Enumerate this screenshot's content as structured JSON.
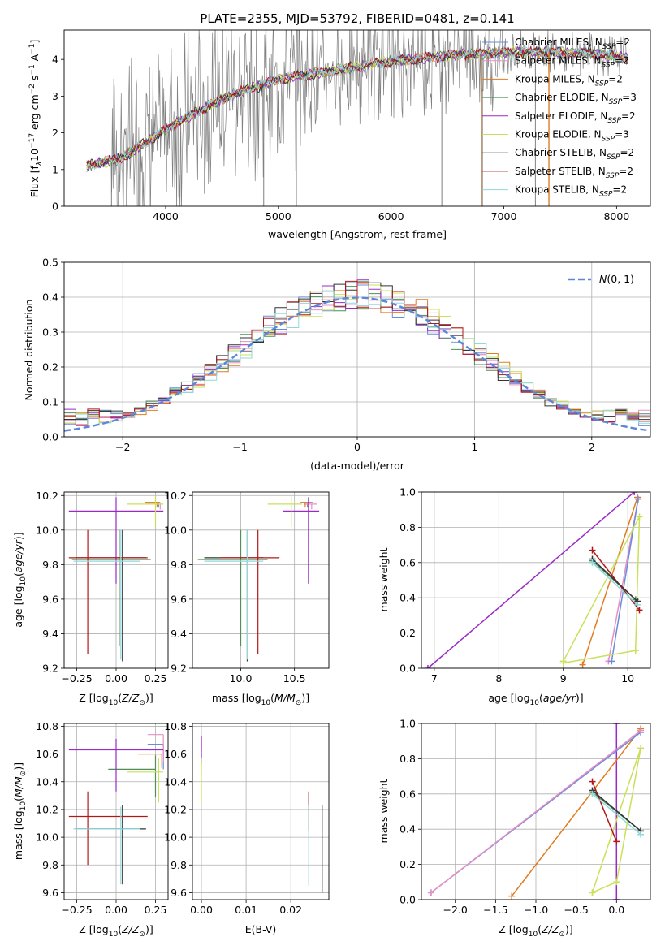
{
  "figure_title": "PLATE=2355, MJD=53792, FIBERID=0481, z=0.141",
  "colors": {
    "Chabrier MILES": "#6a8cdc",
    "Salpeter MILES": "#e68fc4",
    "Kroupa MILES": "#e07b22",
    "Chabrier ELODIE": "#4f8f5a",
    "Salpeter ELODIE": "#9a2bc4",
    "Kroupa ELODIE": "#c9e05a",
    "Chabrier STELIB": "#333333",
    "Salpeter STELIB": "#b01818",
    "Kroupa STELIB": "#8fd8dc",
    "data": "#808080",
    "normal": "#5b87d6"
  },
  "chart_data": [
    {
      "id": "spectrum",
      "type": "line",
      "xlabel": "wavelength [Angstrom, rest frame]",
      "ylabel": "Flux [f_λ 10^-17 erg cm^-2 s^-1 A^-1]",
      "xlim": [
        3100,
        8300
      ],
      "ylim": [
        0,
        4.8
      ],
      "xticks": [
        4000,
        5000,
        6000,
        7000,
        8000
      ],
      "yticks": [
        0,
        1,
        2,
        3,
        4
      ],
      "legend_position": "upper-right",
      "legend": [
        {
          "name": "Chabrier MILES",
          "label": "Chabrier MILES, N",
          "sub": "SSP",
          "suffix": "=2"
        },
        {
          "name": "Salpeter MILES",
          "label": "Salpeter MILES, N",
          "sub": "SSP",
          "suffix": "=2"
        },
        {
          "name": "Kroupa MILES",
          "label": "Kroupa MILES, N",
          "sub": "SSP",
          "suffix": "=2"
        },
        {
          "name": "Chabrier ELODIE",
          "label": "Chabrier ELODIE, N",
          "sub": "SSP",
          "suffix": "=3"
        },
        {
          "name": "Salpeter ELODIE",
          "label": "Salpeter ELODIE, N",
          "sub": "SSP",
          "suffix": "=2"
        },
        {
          "name": "Kroupa ELODIE",
          "label": "Kroupa ELODIE, N",
          "sub": "SSP",
          "suffix": "=3"
        },
        {
          "name": "Chabrier STELIB",
          "label": "Chabrier STELIB, N",
          "sub": "SSP",
          "suffix": "=2"
        },
        {
          "name": "Salpeter STELIB",
          "label": "Salpeter STELIB, N",
          "sub": "SSP",
          "suffix": "=2"
        },
        {
          "name": "Kroupa STELIB",
          "label": "Kroupa STELIB, N",
          "sub": "SSP",
          "suffix": "=2"
        }
      ],
      "continuum": [
        [
          3300,
          1.1
        ],
        [
          3600,
          1.3
        ],
        [
          3750,
          1.6
        ],
        [
          3900,
          1.9
        ],
        [
          4000,
          2.1
        ],
        [
          4300,
          2.6
        ],
        [
          4600,
          3.05
        ],
        [
          5000,
          3.45
        ],
        [
          5500,
          3.7
        ],
        [
          6000,
          3.95
        ],
        [
          6500,
          4.1
        ],
        [
          7000,
          4.2
        ],
        [
          7400,
          4.2
        ],
        [
          7800,
          4.15
        ],
        [
          8100,
          4.05
        ]
      ],
      "data_noise_start": 3520
    },
    {
      "id": "residuals",
      "type": "histogram",
      "xlabel": "(data-model)/error",
      "ylabel": "Normed distribution",
      "xlim": [
        -2.5,
        2.5
      ],
      "ylim": [
        0,
        0.5
      ],
      "xticks": [
        -2,
        -1,
        0,
        1,
        2
      ],
      "yticks": [
        0.0,
        0.1,
        0.2,
        0.3,
        0.4,
        0.5
      ],
      "grid": true,
      "legend_position": "upper-right",
      "normal_label": "N(0,1)",
      "bin_width": 0.1
    },
    {
      "id": "age-vs-Z",
      "type": "errorbar",
      "xlabel": "Z [log10(Z/Z_sun)]",
      "ylabel": "age [log10(age/yr)]",
      "xlim": [
        -0.33,
        0.33
      ],
      "ylim": [
        9.2,
        10.22
      ],
      "xticks": [
        -0.25,
        0.0,
        0.25
      ],
      "yticks": [
        9.2,
        9.4,
        9.6,
        9.8,
        10.0,
        10.2
      ],
      "grid": true,
      "points": [
        {
          "series": "Chabrier MILES",
          "x": 0.27,
          "y": 10.16,
          "xerr": [
            0.08,
            0.0
          ],
          "yerr": [
            0.03,
            0.0
          ]
        },
        {
          "series": "Salpeter MILES",
          "x": 0.28,
          "y": 10.15,
          "xerr": [
            0.09,
            0.01
          ],
          "yerr": [
            0.03,
            0.0
          ]
        },
        {
          "series": "Kroupa MILES",
          "x": 0.26,
          "y": 10.16,
          "xerr": [
            0.08,
            0.02
          ],
          "yerr": [
            0.03,
            0.0
          ]
        },
        {
          "series": "Chabrier ELODIE",
          "x": 0.02,
          "y": 9.83,
          "xerr": [
            0.3,
            0.2
          ],
          "yerr": [
            0.5,
            0.17
          ]
        },
        {
          "series": "Salpeter ELODIE",
          "x": 0.0,
          "y": 10.11,
          "xerr": [
            0.3,
            0.3
          ],
          "yerr": [
            0.42,
            0.08
          ]
        },
        {
          "series": "Kroupa ELODIE",
          "x": 0.25,
          "y": 10.15,
          "xerr": [
            0.18,
            0.05
          ],
          "yerr": [
            0.13,
            0.05
          ]
        },
        {
          "series": "Chabrier STELIB",
          "x": 0.04,
          "y": 9.84,
          "xerr": [
            0.3,
            0.15
          ],
          "yerr": [
            0.6,
            0.16
          ]
        },
        {
          "series": "Salpeter STELIB",
          "x": -0.18,
          "y": 9.84,
          "xerr": [
            0.12,
            0.38
          ],
          "yerr": [
            0.56,
            0.16
          ]
        },
        {
          "series": "Kroupa STELIB",
          "x": 0.03,
          "y": 9.82,
          "xerr": [
            0.3,
            0.12
          ],
          "yerr": [
            0.57,
            0.18
          ]
        }
      ]
    },
    {
      "id": "age-vs-mass",
      "type": "errorbar",
      "xlabel": "mass [log10(M/M_sun)]",
      "ylabel": "",
      "xlim": [
        9.55,
        10.82
      ],
      "ylim": [
        9.2,
        10.22
      ],
      "xticks": [
        10.0,
        10.5
      ],
      "yticks": [
        9.2,
        9.4,
        9.6,
        9.8,
        10.0,
        10.2
      ],
      "grid": true,
      "points": [
        {
          "series": "Chabrier MILES",
          "x": 10.62,
          "y": 10.16,
          "xerr": [
            0.05,
            0.05
          ],
          "yerr": [
            0.03,
            0.0
          ]
        },
        {
          "series": "Salpeter MILES",
          "x": 10.66,
          "y": 10.15,
          "xerr": [
            0.07,
            0.05
          ],
          "yerr": [
            0.03,
            0.0
          ]
        },
        {
          "series": "Kroupa MILES",
          "x": 10.6,
          "y": 10.16,
          "xerr": [
            0.05,
            0.05
          ],
          "yerr": [
            0.03,
            0.0
          ]
        },
        {
          "series": "Chabrier ELODIE",
          "x": 10.0,
          "y": 9.83,
          "xerr": [
            0.4,
            0.25
          ],
          "yerr": [
            0.5,
            0.17
          ]
        },
        {
          "series": "Salpeter ELODIE",
          "x": 10.63,
          "y": 10.11,
          "xerr": [
            0.24,
            0.1
          ],
          "yerr": [
            0.42,
            0.08
          ]
        },
        {
          "series": "Kroupa ELODIE",
          "x": 10.47,
          "y": 10.15,
          "xerr": [
            0.22,
            0.1
          ],
          "yerr": [
            0.13,
            0.05
          ]
        },
        {
          "series": "Chabrier STELIB",
          "x": 10.06,
          "y": 9.84,
          "xerr": [
            0.4,
            0.15
          ],
          "yerr": [
            0.6,
            0.16
          ]
        },
        {
          "series": "Salpeter STELIB",
          "x": 10.16,
          "y": 9.84,
          "xerr": [
            0.35,
            0.2
          ],
          "yerr": [
            0.56,
            0.16
          ]
        },
        {
          "series": "Kroupa STELIB",
          "x": 10.06,
          "y": 9.82,
          "xerr": [
            0.4,
            0.15
          ],
          "yerr": [
            0.57,
            0.18
          ]
        }
      ]
    },
    {
      "id": "weight-vs-age",
      "type": "line",
      "xlabel": "age [log10(age/yr)]",
      "ylabel": "mass weight",
      "xlim": [
        6.8,
        10.35
      ],
      "ylim": [
        0,
        1
      ],
      "xticks": [
        7,
        8,
        9,
        10
      ],
      "yticks": [
        0.0,
        0.2,
        0.4,
        0.6,
        0.8,
        1.0
      ],
      "grid": true,
      "series": [
        {
          "name": "Salpeter ELODIE",
          "x": [
            6.9,
            10.1
          ],
          "y": [
            0.0,
            1.0
          ]
        },
        {
          "name": "Kroupa MILES",
          "x": [
            9.3,
            10.15
          ],
          "y": [
            0.02,
            0.97
          ]
        },
        {
          "name": "Salpeter MILES",
          "x": [
            9.7,
            10.16
          ],
          "y": [
            0.04,
            0.96
          ]
        },
        {
          "name": "Chabrier MILES",
          "x": [
            9.75,
            10.16
          ],
          "y": [
            0.04,
            0.96
          ]
        },
        {
          "name": "Kroupa ELODIE",
          "x": [
            9.0,
            10.12,
            10.18,
            9.0
          ],
          "y": [
            0.03,
            0.1,
            0.86,
            0.04
          ]
        },
        {
          "name": "Chabrier ELODIE",
          "x": [
            9.45,
            10.12
          ],
          "y": [
            0.61,
            0.39
          ]
        },
        {
          "name": "Salpeter STELIB",
          "x": [
            9.45,
            10.18
          ],
          "y": [
            0.67,
            0.33
          ]
        },
        {
          "name": "Chabrier STELIB",
          "x": [
            9.45,
            10.15
          ],
          "y": [
            0.62,
            0.38
          ]
        },
        {
          "name": "Kroupa STELIB",
          "x": [
            9.45,
            10.15
          ],
          "y": [
            0.6,
            0.36
          ]
        }
      ]
    },
    {
      "id": "mass-vs-Z",
      "type": "errorbar",
      "xlabel": "Z [log10(Z/Z_sun)]",
      "ylabel": "mass [log10(M/M_sun)]",
      "xlim": [
        -0.33,
        0.33
      ],
      "ylim": [
        9.55,
        10.82
      ],
      "xticks": [
        -0.25,
        0.0,
        0.25
      ],
      "yticks": [
        9.6,
        9.8,
        10.0,
        10.2,
        10.4,
        10.6,
        10.8
      ],
      "grid": true,
      "points": [
        {
          "series": "Chabrier MILES",
          "x": 0.3,
          "y": 10.67,
          "xerr": [
            0.1,
            0.0
          ],
          "yerr": [
            0.18,
            0.0
          ]
        },
        {
          "series": "Salpeter MILES",
          "x": 0.3,
          "y": 10.74,
          "xerr": [
            0.1,
            0.0
          ],
          "yerr": [
            0.2,
            0.0
          ]
        },
        {
          "series": "Kroupa MILES",
          "x": 0.29,
          "y": 10.6,
          "xerr": [
            0.15,
            0.0
          ],
          "yerr": [
            0.1,
            0.0
          ]
        },
        {
          "series": "Chabrier ELODIE",
          "x": 0.25,
          "y": 10.49,
          "xerr": [
            0.3,
            0.0
          ],
          "yerr": [
            0.2,
            0.1
          ]
        },
        {
          "series": "Salpeter ELODIE",
          "x": 0.0,
          "y": 10.63,
          "xerr": [
            0.3,
            0.3
          ],
          "yerr": [
            0.3,
            0.08
          ]
        },
        {
          "series": "Kroupa ELODIE",
          "x": 0.27,
          "y": 10.47,
          "xerr": [
            0.2,
            0.03
          ],
          "yerr": [
            0.22,
            0.1
          ]
        },
        {
          "series": "Chabrier STELIB",
          "x": 0.04,
          "y": 10.06,
          "xerr": [
            0.3,
            0.15
          ],
          "yerr": [
            0.4,
            0.17
          ]
        },
        {
          "series": "Salpeter STELIB",
          "x": -0.18,
          "y": 10.15,
          "xerr": [
            0.12,
            0.38
          ],
          "yerr": [
            0.35,
            0.18
          ]
        },
        {
          "series": "Kroupa STELIB",
          "x": 0.03,
          "y": 10.06,
          "xerr": [
            0.3,
            0.12
          ],
          "yerr": [
            0.4,
            0.16
          ]
        }
      ]
    },
    {
      "id": "mass-vs-EBV",
      "type": "errorbar",
      "xlabel": "E(B-V)",
      "ylabel": "",
      "xlim": [
        -0.002,
        0.0285
      ],
      "ylim": [
        9.55,
        10.82
      ],
      "xticks": [
        0.0,
        0.01,
        0.02
      ],
      "yticks": [
        9.6,
        9.8,
        10.0,
        10.2,
        10.4,
        10.6,
        10.8
      ],
      "grid": true,
      "points": [
        {
          "series": "Salpeter MILES",
          "x": 0.0,
          "y": 10.68,
          "xerr": [
            0,
            0
          ],
          "yerr": [
            0.05,
            0.05
          ]
        },
        {
          "series": "Salpeter ELODIE",
          "x": 0.0,
          "y": 10.63,
          "xerr": [
            0,
            0
          ],
          "yerr": [
            0.1,
            0.1
          ]
        },
        {
          "series": "Kroupa ELODIE",
          "x": 0.0,
          "y": 10.47,
          "xerr": [
            0,
            0
          ],
          "yerr": [
            0.22,
            0.1
          ]
        },
        {
          "series": "Salpeter STELIB",
          "x": 0.024,
          "y": 10.15,
          "xerr": [
            0,
            0
          ],
          "yerr": [
            0.1,
            0.18
          ]
        },
        {
          "series": "Kroupa STELIB",
          "x": 0.024,
          "y": 10.0,
          "xerr": [
            0,
            0
          ],
          "yerr": [
            0.35,
            0.23
          ]
        },
        {
          "series": "Chabrier STELIB",
          "x": 0.027,
          "y": 9.9,
          "xerr": [
            0,
            0
          ],
          "yerr": [
            0.3,
            0.33
          ]
        }
      ]
    },
    {
      "id": "weight-vs-Z",
      "type": "line",
      "xlabel": "Z [log10(Z/Z_sun)]",
      "ylabel": "mass weight",
      "xlim": [
        -2.42,
        0.42
      ],
      "ylim": [
        0,
        1
      ],
      "xticks": [
        -2.0,
        -1.5,
        -1.0,
        -0.5,
        0.0
      ],
      "yticks": [
        0.0,
        0.2,
        0.4,
        0.6,
        0.8,
        1.0
      ],
      "grid": true,
      "series": [
        {
          "name": "Salpeter ELODIE",
          "x": [
            0.0,
            0.0
          ],
          "y": [
            0.0,
            1.0
          ]
        },
        {
          "name": "Kroupa MILES",
          "x": [
            -1.3,
            0.3
          ],
          "y": [
            0.02,
            0.97
          ]
        },
        {
          "name": "Chabrier MILES",
          "x": [
            -2.3,
            0.3
          ],
          "y": [
            0.04,
            0.95
          ]
        },
        {
          "name": "Salpeter MILES",
          "x": [
            -2.3,
            0.3
          ],
          "y": [
            0.04,
            0.96
          ]
        },
        {
          "name": "Kroupa ELODIE",
          "x": [
            -0.3,
            0.0,
            0.3,
            -0.3
          ],
          "y": [
            0.04,
            0.1,
            0.86,
            0.04
          ]
        },
        {
          "name": "Chabrier ELODIE",
          "x": [
            -0.3,
            0.3
          ],
          "y": [
            0.61,
            0.39
          ]
        },
        {
          "name": "Salpeter STELIB",
          "x": [
            -0.3,
            0.0
          ],
          "y": [
            0.67,
            0.33
          ]
        },
        {
          "name": "Chabrier STELIB",
          "x": [
            -0.3,
            0.3
          ],
          "y": [
            0.62,
            0.39
          ]
        },
        {
          "name": "Kroupa STELIB",
          "x": [
            -0.3,
            0.3
          ],
          "y": [
            0.6,
            0.37
          ]
        }
      ]
    }
  ]
}
